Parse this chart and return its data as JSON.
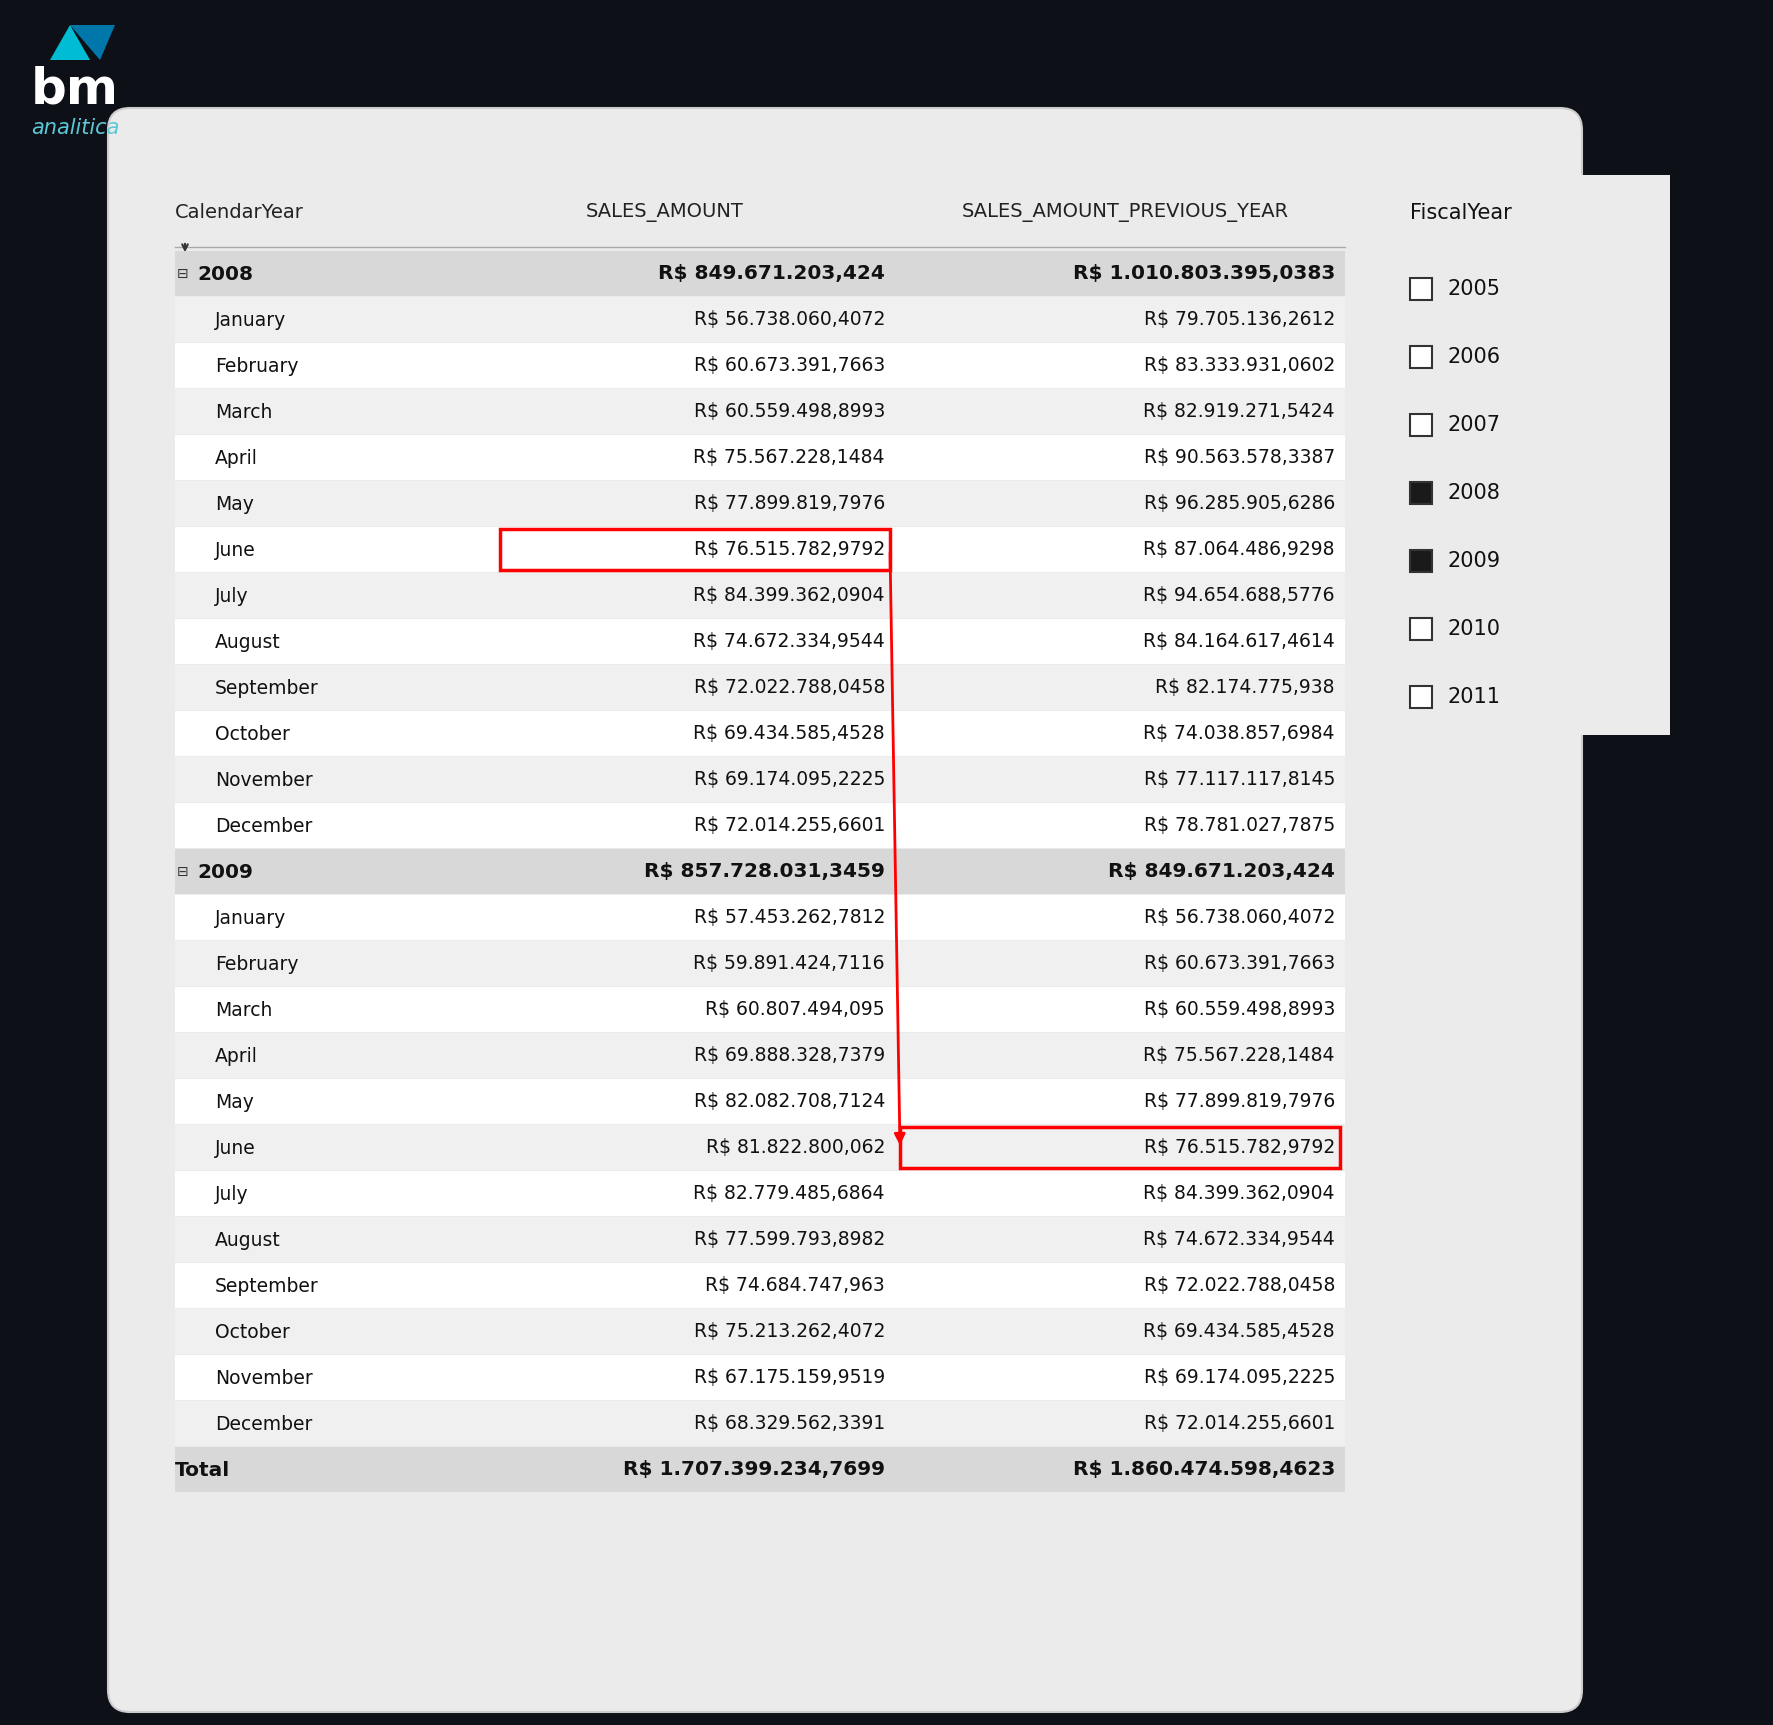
{
  "background_color": "#0d1117",
  "table_bg": "#e8e8e8",
  "col_headers": [
    "CalendarYear",
    "SALES_AMOUNT",
    "SALES_AMOUNT_PREVIOUS_YEAR"
  ],
  "rows": [
    {
      "label": "2008",
      "level": 0,
      "bold": true,
      "collapse": true,
      "sales": "R$ 849.671.203,424",
      "prev": "R$ 1.010.803.395,0383"
    },
    {
      "label": "January",
      "level": 1,
      "bold": false,
      "collapse": false,
      "sales": "R$ 56.738.060,4072",
      "prev": "R$ 79.705.136,2612"
    },
    {
      "label": "February",
      "level": 1,
      "bold": false,
      "collapse": false,
      "sales": "R$ 60.673.391,7663",
      "prev": "R$ 83.333.931,0602"
    },
    {
      "label": "March",
      "level": 1,
      "bold": false,
      "collapse": false,
      "sales": "R$ 60.559.498,8993",
      "prev": "R$ 82.919.271,5424"
    },
    {
      "label": "April",
      "level": 1,
      "bold": false,
      "collapse": false,
      "sales": "R$ 75.567.228,1484",
      "prev": "R$ 90.563.578,3387"
    },
    {
      "label": "May",
      "level": 1,
      "bold": false,
      "collapse": false,
      "sales": "R$ 77.899.819,7976",
      "prev": "R$ 96.285.905,6286"
    },
    {
      "label": "June",
      "level": 1,
      "bold": false,
      "collapse": false,
      "sales": "R$ 76.515.782,9792",
      "prev": "R$ 87.064.486,9298",
      "highlight_sales": true
    },
    {
      "label": "July",
      "level": 1,
      "bold": false,
      "collapse": false,
      "sales": "R$ 84.399.362,0904",
      "prev": "R$ 94.654.688,5776"
    },
    {
      "label": "August",
      "level": 1,
      "bold": false,
      "collapse": false,
      "sales": "R$ 74.672.334,9544",
      "prev": "R$ 84.164.617,4614"
    },
    {
      "label": "September",
      "level": 1,
      "bold": false,
      "collapse": false,
      "sales": "R$ 72.022.788,0458",
      "prev": "R$ 82.174.775,938"
    },
    {
      "label": "October",
      "level": 1,
      "bold": false,
      "collapse": false,
      "sales": "R$ 69.434.585,4528",
      "prev": "R$ 74.038.857,6984"
    },
    {
      "label": "November",
      "level": 1,
      "bold": false,
      "collapse": false,
      "sales": "R$ 69.174.095,2225",
      "prev": "R$ 77.117.117,8145"
    },
    {
      "label": "December",
      "level": 1,
      "bold": false,
      "collapse": false,
      "sales": "R$ 72.014.255,6601",
      "prev": "R$ 78.781.027,7875"
    },
    {
      "label": "2009",
      "level": 0,
      "bold": true,
      "collapse": true,
      "sales": "R$ 857.728.031,3459",
      "prev": "R$ 849.671.203,424"
    },
    {
      "label": "January",
      "level": 1,
      "bold": false,
      "collapse": false,
      "sales": "R$ 57.453.262,7812",
      "prev": "R$ 56.738.060,4072"
    },
    {
      "label": "February",
      "level": 1,
      "bold": false,
      "collapse": false,
      "sales": "R$ 59.891.424,7116",
      "prev": "R$ 60.673.391,7663"
    },
    {
      "label": "March",
      "level": 1,
      "bold": false,
      "collapse": false,
      "sales": "R$ 60.807.494,095",
      "prev": "R$ 60.559.498,8993"
    },
    {
      "label": "April",
      "level": 1,
      "bold": false,
      "collapse": false,
      "sales": "R$ 69.888.328,7379",
      "prev": "R$ 75.567.228,1484"
    },
    {
      "label": "May",
      "level": 1,
      "bold": false,
      "collapse": false,
      "sales": "R$ 82.082.708,7124",
      "prev": "R$ 77.899.819,7976"
    },
    {
      "label": "June",
      "level": 1,
      "bold": false,
      "collapse": false,
      "sales": "R$ 81.822.800,062",
      "prev": "R$ 76.515.782,9792",
      "highlight_prev": true
    },
    {
      "label": "July",
      "level": 1,
      "bold": false,
      "collapse": false,
      "sales": "R$ 82.779.485,6864",
      "prev": "R$ 84.399.362,0904"
    },
    {
      "label": "August",
      "level": 1,
      "bold": false,
      "collapse": false,
      "sales": "R$ 77.599.793,8982",
      "prev": "R$ 74.672.334,9544"
    },
    {
      "label": "September",
      "level": 1,
      "bold": false,
      "collapse": false,
      "sales": "R$ 74.684.747,963",
      "prev": "R$ 72.022.788,0458"
    },
    {
      "label": "October",
      "level": 1,
      "bold": false,
      "collapse": false,
      "sales": "R$ 75.213.262,4072",
      "prev": "R$ 69.434.585,4528"
    },
    {
      "label": "November",
      "level": 1,
      "bold": false,
      "collapse": false,
      "sales": "R$ 67.175.159,9519",
      "prev": "R$ 69.174.095,2225"
    },
    {
      "label": "December",
      "level": 1,
      "bold": false,
      "collapse": false,
      "sales": "R$ 68.329.562,3391",
      "prev": "R$ 72.014.255,6601"
    },
    {
      "label": "Total",
      "level": 0,
      "bold": true,
      "collapse": false,
      "sales": "R$ 1.707.399.234,7699",
      "prev": "R$ 1.860.474.598,4623"
    }
  ],
  "legend_title": "FiscalYear",
  "legend_items": [
    {
      "year": "2005",
      "filled": false
    },
    {
      "year": "2006",
      "filled": false
    },
    {
      "year": "2007",
      "filled": false
    },
    {
      "year": "2008",
      "filled": true
    },
    {
      "year": "2009",
      "filled": true
    },
    {
      "year": "2010",
      "filled": false
    },
    {
      "year": "2011",
      "filled": false
    }
  ],
  "arrow_src_row": 6,
  "arrow_dst_row": 19
}
